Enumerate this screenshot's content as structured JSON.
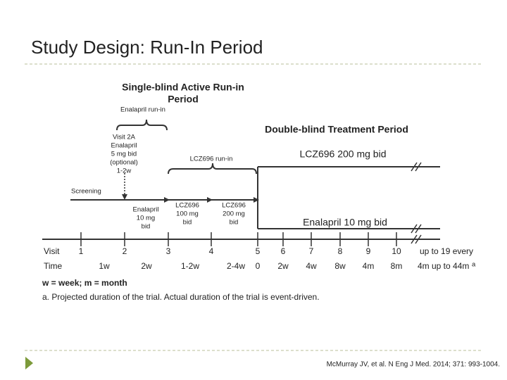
{
  "header": {
    "title": "Study Design: Run-In Period"
  },
  "diagram": {
    "single_blind_heading": [
      "Single-blind Active Run-in",
      "Period"
    ],
    "double_blind_heading": "Double-blind Treatment Period",
    "enalapril_run_in": "Enalapril run-in",
    "lcz_run_in": "LCZ696 run-in",
    "visit_2a": [
      "Visit 2A",
      "Enalapril",
      "5 mg bid",
      "(optional)",
      "1-2w"
    ],
    "screening": "Screening",
    "enalapril_10": [
      "Enalapril",
      "10 mg",
      "bid"
    ],
    "lcz_100": [
      "LCZ696",
      "100 mg",
      "bid"
    ],
    "lcz_200": [
      "LCZ696",
      "200 mg",
      "bid"
    ],
    "arm_lcz": "LCZ696 200 mg bid",
    "arm_enalapril": "Enalapril 10 mg bid",
    "visit_label": "Visit",
    "visits": [
      "1",
      "2",
      "3",
      "4",
      "5",
      "6",
      "7",
      "8",
      "9",
      "10",
      "up to 19 every"
    ],
    "time_label": "Time",
    "times": [
      "1w",
      "2w",
      "1-2w",
      "2-4w",
      "0",
      "2w",
      "4w",
      "8w",
      "4m",
      "8m",
      "4m up to 44m"
    ],
    "time_note_mark": "a"
  },
  "notes": [
    "w = week; m = month",
    "a. Projected duration of the trial. Actual duration of the trial is event-driven."
  ],
  "footer": {
    "citation": "McMurray JV, et al. N Eng J Med. 2014; 371: 993-1004."
  }
}
